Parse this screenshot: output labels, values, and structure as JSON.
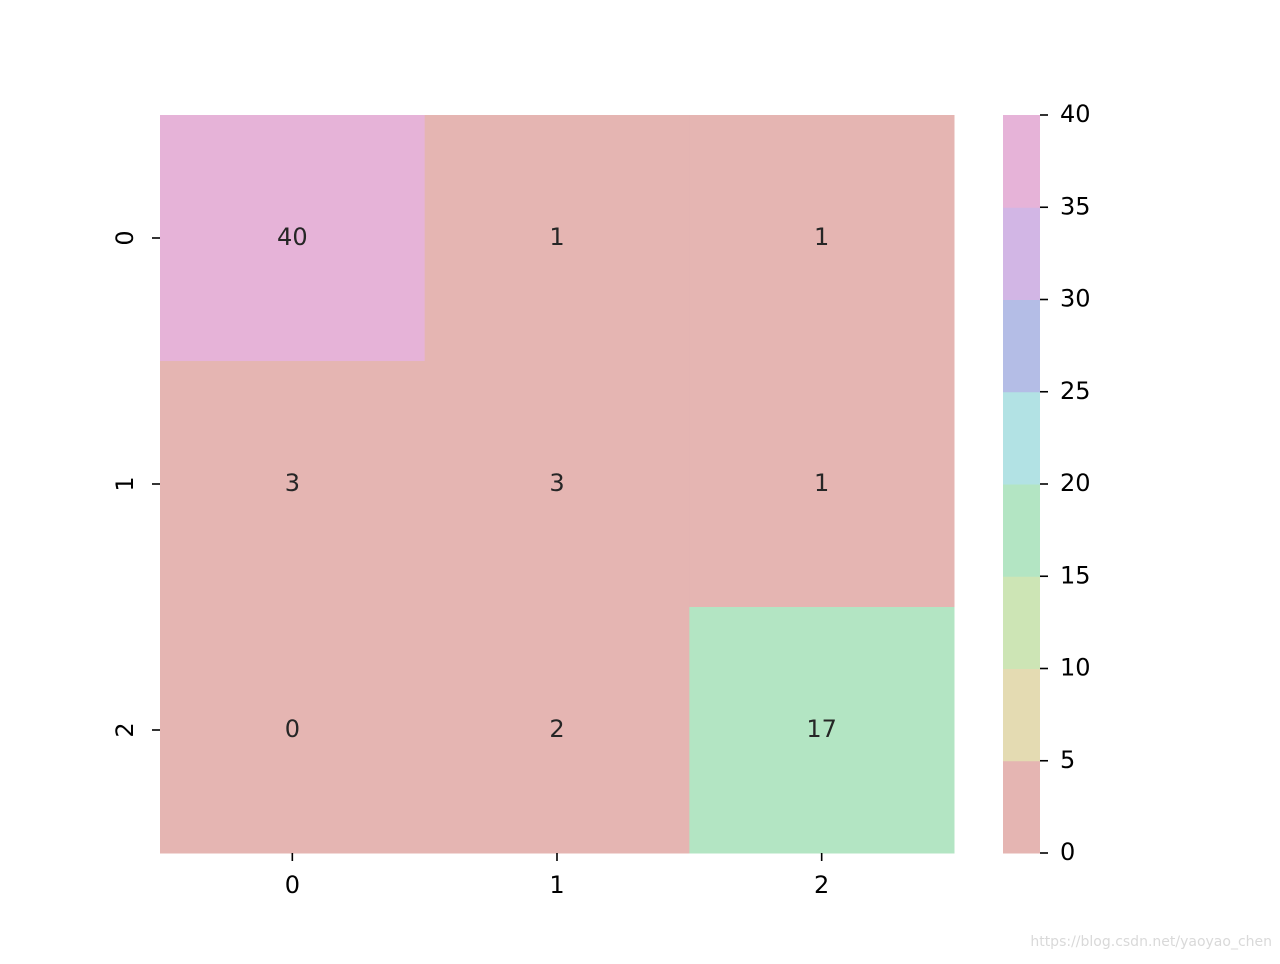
{
  "chart_data": {
    "type": "heatmap",
    "x_categories": [
      "0",
      "1",
      "2"
    ],
    "y_categories": [
      "0",
      "1",
      "2"
    ],
    "values": [
      [
        40,
        1,
        1
      ],
      [
        3,
        3,
        1
      ],
      [
        0,
        2,
        17
      ]
    ],
    "clim": [
      0,
      40
    ],
    "cticks": [
      0,
      5,
      10,
      15,
      20,
      25,
      30,
      35,
      40
    ],
    "colors": [
      "#e5b5b2",
      "#e4dbb2",
      "#cde5b5",
      "#b3e5c3",
      "#b2e2e4",
      "#b4bde6",
      "#d2b6e5",
      "#e6b3d8"
    ],
    "watermark": "https://blog.csdn.net/yaoyao_chen"
  }
}
